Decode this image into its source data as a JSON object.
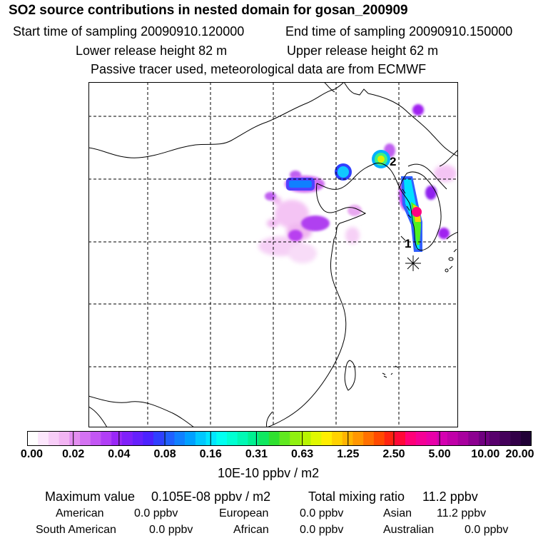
{
  "header": {
    "title": "SO2 source contributions in nested domain for gosan_200909",
    "start_sampling": "Start time of sampling 20090910.120000",
    "end_sampling": "End time of sampling 20090910.150000",
    "lower_release": "Lower release height   82 m",
    "upper_release": "Upper release height   62 m",
    "note": "Passive tracer used, meteorological data are from ECMWF"
  },
  "map": {
    "receptor_labels": [
      "1",
      "2"
    ]
  },
  "colorbar": {
    "ticks": [
      "0.00",
      "0.02",
      "0.04",
      "0.08",
      "0.16",
      "0.31",
      "0.63",
      "1.25",
      "2.50",
      "5.00",
      "10.00",
      "20.00"
    ],
    "colors": [
      "#ffffff",
      "#fce6fc",
      "#f7cdf7",
      "#f2b4f2",
      "#e38ef0",
      "#d472f2",
      "#c356f4",
      "#b13ef6",
      "#9a28f8",
      "#8020fa",
      "#6620fc",
      "#4c22fe",
      "#3040ff",
      "#2060ff",
      "#1080ff",
      "#00a0ff",
      "#00c8ff",
      "#00e6ff",
      "#00fff0",
      "#00ffd2",
      "#00f8b4",
      "#00f090",
      "#10e860",
      "#30e030",
      "#60e820",
      "#90f010",
      "#b8f400",
      "#e0f800",
      "#ffee00",
      "#ffd200",
      "#ffb400",
      "#ff9600",
      "#ff7000",
      "#ff4a00",
      "#ff2410",
      "#ff0838",
      "#ff0078",
      "#f40096",
      "#e800a8",
      "#d400b0",
      "#c000a8",
      "#a8009e",
      "#8c0090",
      "#700080",
      "#58006c",
      "#44005a",
      "#320048",
      "#200036"
    ],
    "units": "10E-10 ppbv / m2"
  },
  "summary": {
    "max_label": "Maximum value",
    "max_value": "0.105E-08 ppbv / m2",
    "total_label": "Total mixing ratio",
    "total_value": "11.2 ppbv",
    "regions": [
      {
        "name": "American",
        "value": "0.0 ppbv"
      },
      {
        "name": "European",
        "value": "0.0 ppbv"
      },
      {
        "name": "Asian",
        "value": "11.2 ppbv"
      },
      {
        "name": "South American",
        "value": "0.0 ppbv"
      },
      {
        "name": "African",
        "value": "0.0 ppbv"
      },
      {
        "name": "Australian",
        "value": "0.0 ppbv"
      }
    ]
  }
}
